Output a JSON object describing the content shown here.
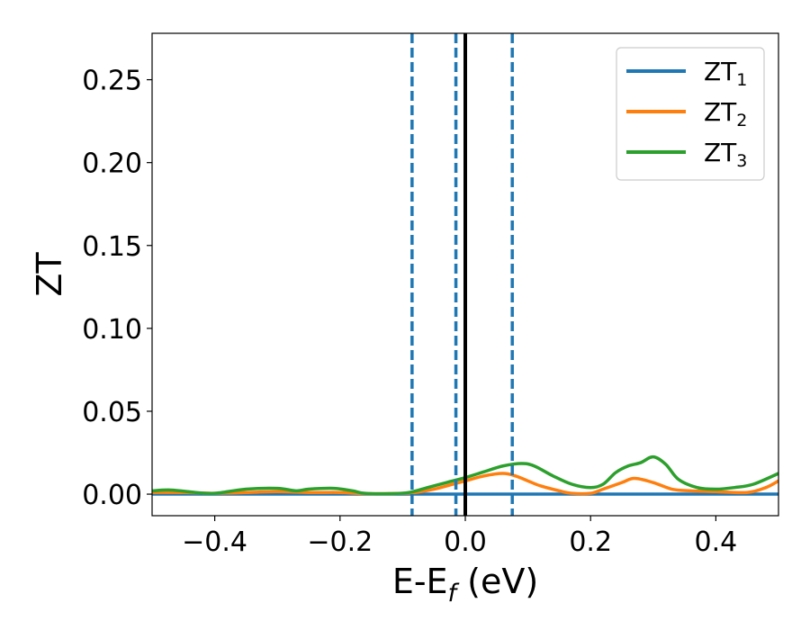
{
  "chart_data": {
    "type": "line",
    "xlabel": {
      "main": "E-E",
      "sub": "f",
      "tail": " (eV)"
    },
    "ylabel": "ZT",
    "xlim": [
      -0.5,
      0.5
    ],
    "ylim": [
      -0.013,
      0.278
    ],
    "xticks": [
      -0.4,
      -0.2,
      0.0,
      0.2,
      0.4
    ],
    "xtick_labels": [
      "−0.4",
      "−0.2",
      "0.0",
      "0.2",
      "0.4"
    ],
    "yticks": [
      0.0,
      0.05,
      0.1,
      0.15,
      0.2,
      0.25
    ],
    "ytick_labels": [
      "0.00",
      "0.05",
      "0.10",
      "0.15",
      "0.20",
      "0.25"
    ],
    "legend_position": "top-right",
    "grid": false,
    "reference_lines": {
      "solid": {
        "x": 0.0,
        "color": "#000000"
      },
      "dashed": {
        "x": [
          -0.085,
          -0.015,
          0.075
        ],
        "color": "#1f77b4"
      }
    },
    "series": [
      {
        "name": {
          "main": "ZT",
          "sub": "1"
        },
        "color": "#1f77b4",
        "x": [
          -0.5,
          0.0,
          0.5
        ],
        "values": [
          0.0,
          0.0,
          0.0
        ]
      },
      {
        "name": {
          "main": "ZT",
          "sub": "2"
        },
        "color": "#ff7f0e",
        "x": [
          -0.5,
          -0.45,
          -0.4,
          -0.35,
          -0.3,
          -0.25,
          -0.2,
          -0.16,
          -0.1,
          -0.08,
          -0.05,
          -0.02,
          0.0,
          0.03,
          0.06,
          0.08,
          0.1,
          0.12,
          0.15,
          0.17,
          0.2,
          0.22,
          0.25,
          0.27,
          0.3,
          0.33,
          0.36,
          0.4,
          0.45,
          0.48,
          0.5
        ],
        "values": [
          0.001,
          0.001,
          0.0005,
          0.001,
          0.0015,
          0.001,
          0.001,
          0.0003,
          0.0005,
          0.001,
          0.003,
          0.006,
          0.008,
          0.011,
          0.0125,
          0.011,
          0.008,
          0.005,
          0.002,
          0.0005,
          0.0005,
          0.003,
          0.007,
          0.0095,
          0.007,
          0.003,
          0.002,
          0.0015,
          0.001,
          0.004,
          0.008
        ]
      },
      {
        "name": {
          "main": "ZT",
          "sub": "3"
        },
        "color": "#2ca02c",
        "x": [
          -0.5,
          -0.47,
          -0.43,
          -0.4,
          -0.35,
          -0.3,
          -0.27,
          -0.25,
          -0.21,
          -0.18,
          -0.16,
          -0.12,
          -0.09,
          -0.06,
          -0.03,
          0.0,
          0.03,
          0.06,
          0.09,
          0.11,
          0.14,
          0.17,
          0.2,
          0.22,
          0.24,
          0.26,
          0.28,
          0.3,
          0.32,
          0.34,
          0.37,
          0.4,
          0.43,
          0.46,
          0.5
        ],
        "values": [
          0.002,
          0.0025,
          0.001,
          0.0005,
          0.003,
          0.0035,
          0.002,
          0.003,
          0.0035,
          0.002,
          0.0005,
          0.0003,
          0.001,
          0.004,
          0.007,
          0.01,
          0.0135,
          0.017,
          0.0185,
          0.017,
          0.011,
          0.006,
          0.004,
          0.006,
          0.013,
          0.017,
          0.019,
          0.0225,
          0.018,
          0.009,
          0.004,
          0.003,
          0.004,
          0.006,
          0.0125
        ]
      }
    ]
  }
}
